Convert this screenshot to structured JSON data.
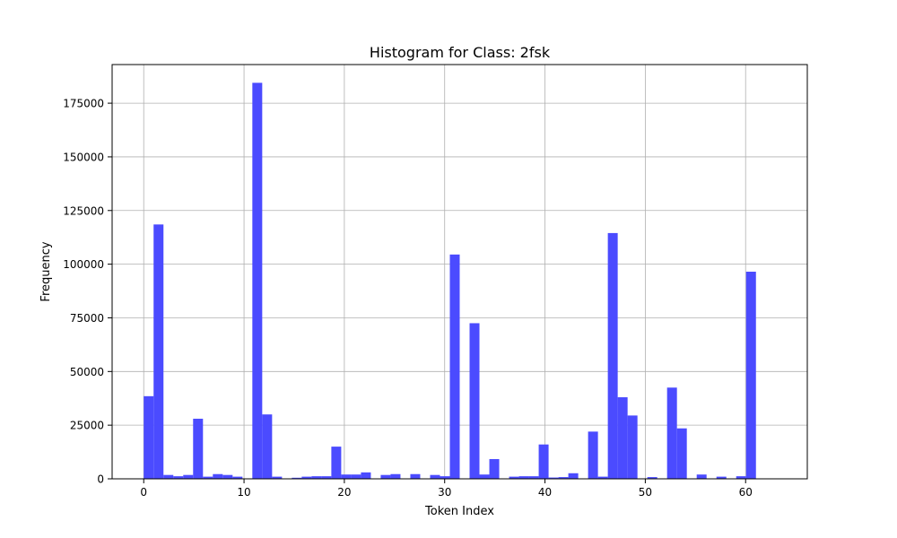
{
  "chart_data": {
    "type": "bar",
    "title": "Histogram for Class: 2fsk",
    "xlabel": "Token Index",
    "ylabel": "Frequency",
    "xlim": [
      -3.15,
      66.15
    ],
    "ylim": [
      0,
      193000
    ],
    "xticks": [
      0,
      10,
      20,
      30,
      40,
      50,
      60
    ],
    "yticks": [
      0,
      25000,
      50000,
      75000,
      100000,
      125000,
      150000,
      175000
    ],
    "grid": true,
    "bar_color": "#4b4bff",
    "bin_start": 0,
    "bin_width": 0.984375,
    "values": [
      38500,
      118500,
      1800,
      1200,
      1800,
      28000,
      1000,
      2200,
      1800,
      1000,
      0,
      184500,
      30000,
      1000,
      0,
      500,
      1000,
      1200,
      1200,
      15000,
      2000,
      2000,
      3000,
      0,
      1800,
      2200,
      0,
      2200,
      0,
      1800,
      1200,
      104500,
      0,
      72500,
      2000,
      9200,
      0,
      1000,
      1200,
      1200,
      16000,
      600,
      800,
      2600,
      0,
      22000,
      1000,
      114500,
      38000,
      29500,
      0,
      800,
      0,
      42500,
      23500,
      0,
      2000,
      0,
      1000,
      0,
      1200,
      96500,
      0,
      0
    ]
  }
}
